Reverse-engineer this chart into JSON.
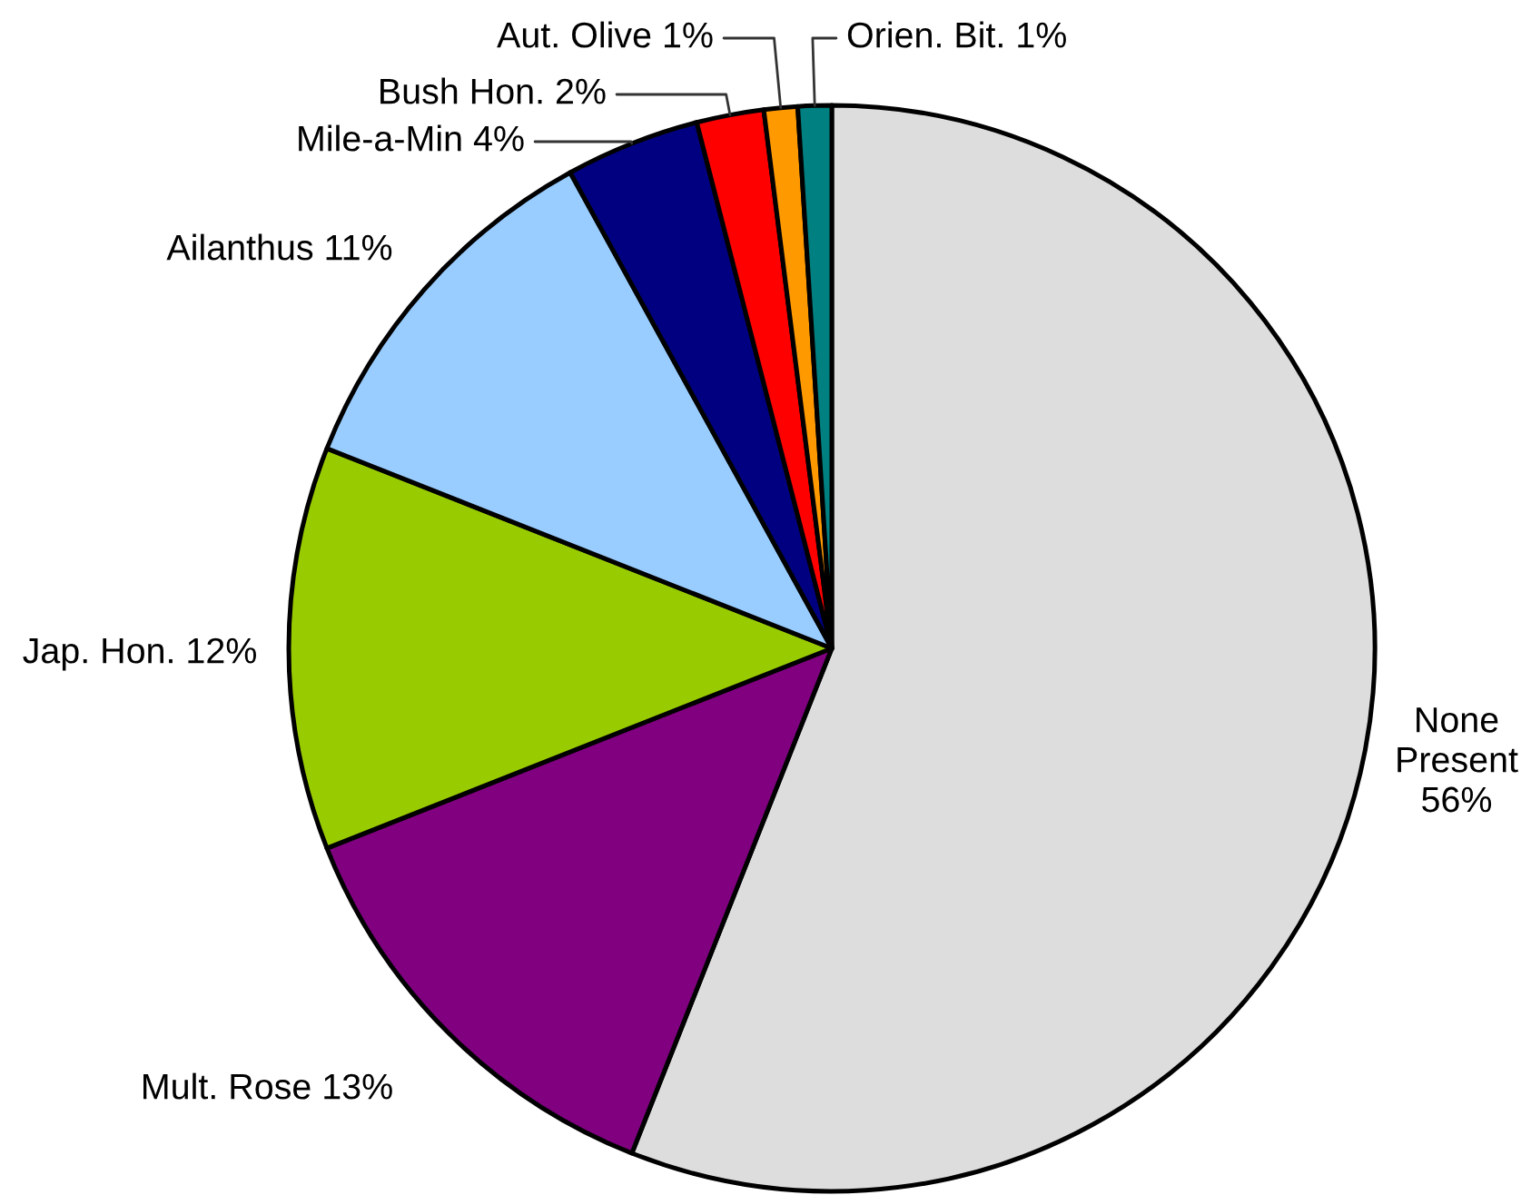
{
  "chart_data": {
    "type": "pie",
    "categories": [
      "None Present",
      "Mult. Rose",
      "Jap. Hon.",
      "Ailanthus",
      "Mile-a-Min",
      "Bush Hon.",
      "Aut. Olive",
      "Orien. Bit."
    ],
    "values": [
      56,
      13,
      12,
      11,
      4,
      2,
      1,
      1
    ],
    "colors": [
      "#dddddd",
      "#800080",
      "#99cc00",
      "#99ccff",
      "#000080",
      "#ff0000",
      "#ff9900",
      "#008080"
    ],
    "value_labels": [
      "56%",
      "13%",
      "12%",
      "11%",
      "4%",
      "2%",
      "1%",
      "1%"
    ]
  }
}
